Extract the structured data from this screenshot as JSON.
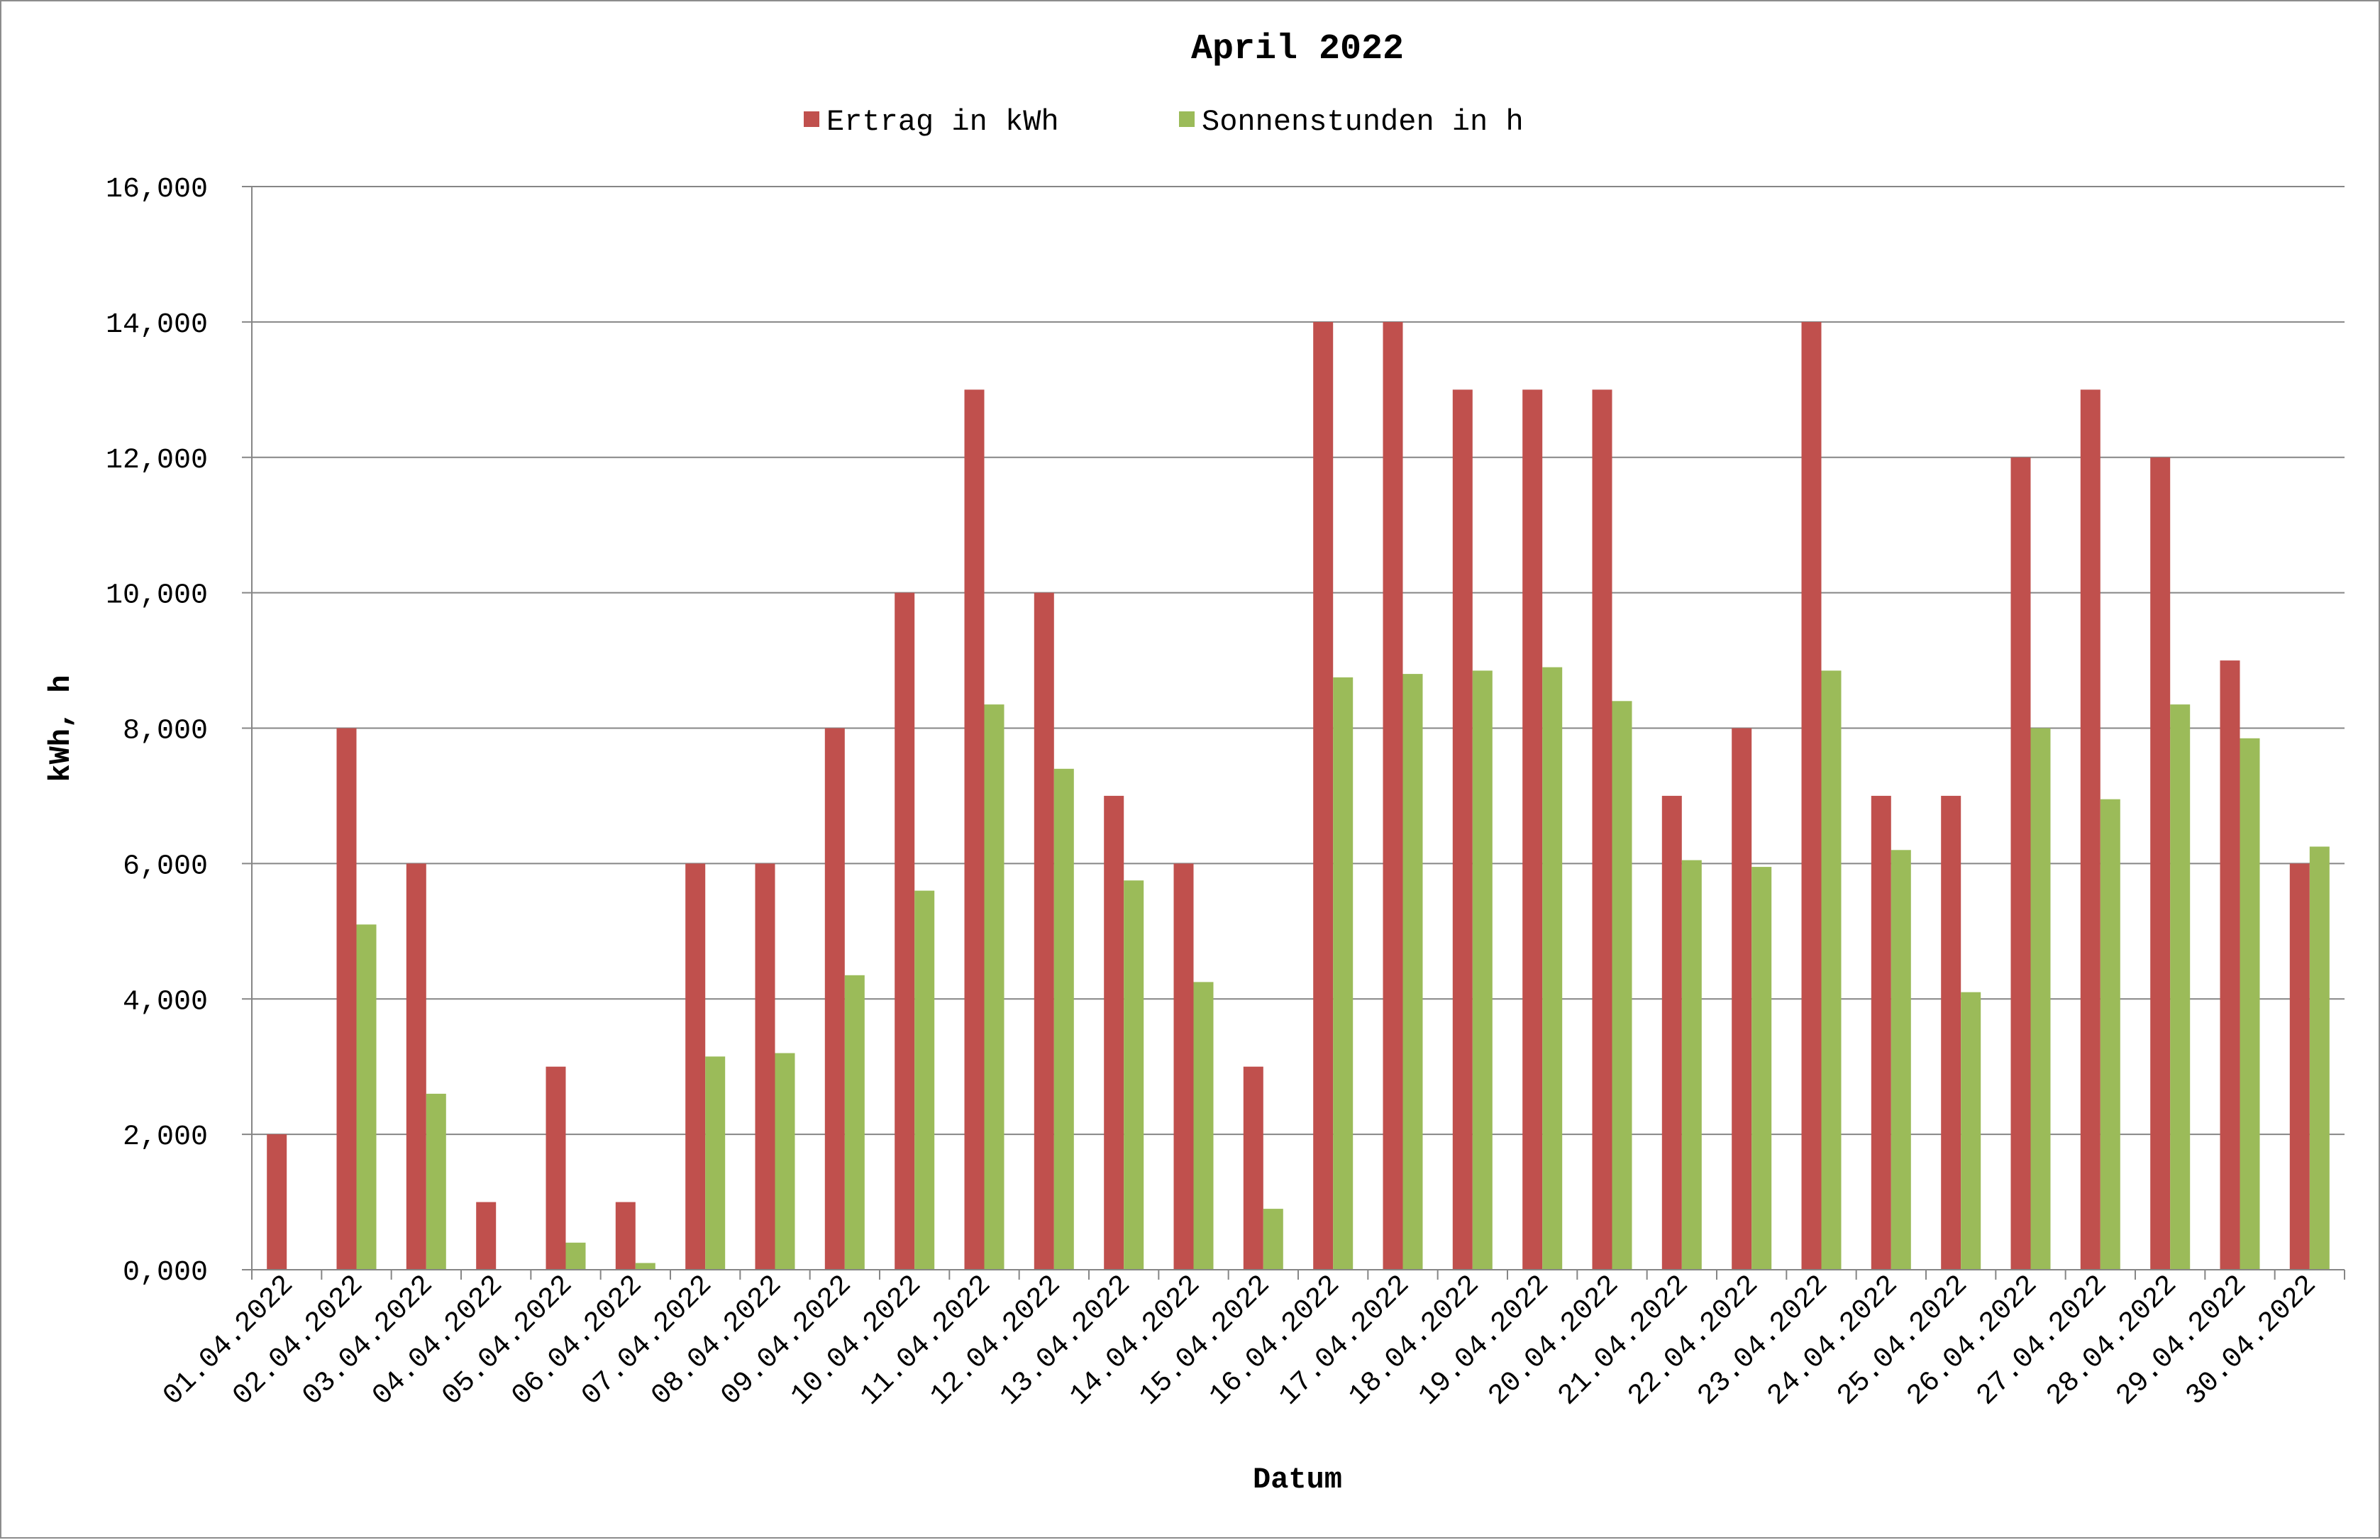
{
  "chart_data": {
    "type": "bar",
    "title": "April 2022",
    "xlabel": "Datum",
    "ylabel": "kWh, h",
    "ylim": [
      0,
      16
    ],
    "yticks": [
      "0,000",
      "2,000",
      "4,000",
      "6,000",
      "8,000",
      "10,000",
      "12,000",
      "14,000",
      "16,000"
    ],
    "grid": true,
    "legend_position": "top",
    "categories": [
      "01.04.2022",
      "02.04.2022",
      "03.04.2022",
      "04.04.2022",
      "05.04.2022",
      "06.04.2022",
      "07.04.2022",
      "08.04.2022",
      "09.04.2022",
      "10.04.2022",
      "11.04.2022",
      "12.04.2022",
      "13.04.2022",
      "14.04.2022",
      "15.04.2022",
      "16.04.2022",
      "17.04.2022",
      "18.04.2022",
      "19.04.2022",
      "20.04.2022",
      "21.04.2022",
      "22.04.2022",
      "23.04.2022",
      "24.04.2022",
      "25.04.2022",
      "26.04.2022",
      "27.04.2022",
      "28.04.2022",
      "29.04.2022",
      "30.04.2022"
    ],
    "series": [
      {
        "name": "Ertrag in kWh",
        "color": "#c0504d",
        "values": [
          2,
          8,
          6,
          1,
          3,
          1,
          6,
          6,
          8,
          10,
          13,
          10,
          7,
          6,
          3,
          14,
          14,
          13,
          13,
          13,
          7,
          8,
          14,
          7,
          7,
          12,
          13,
          12,
          9,
          6
        ]
      },
      {
        "name": "Sonnenstunden in h",
        "color": "#9bbb59",
        "values": [
          0,
          5.1,
          2.6,
          0,
          0.4,
          0.1,
          3.15,
          3.2,
          4.35,
          5.6,
          8.35,
          7.4,
          5.75,
          4.25,
          0.9,
          8.75,
          8.8,
          8.85,
          8.9,
          8.4,
          6.05,
          5.95,
          8.85,
          6.2,
          4.1,
          8.0,
          6.95,
          8.35,
          7.85,
          6.25
        ]
      }
    ]
  }
}
